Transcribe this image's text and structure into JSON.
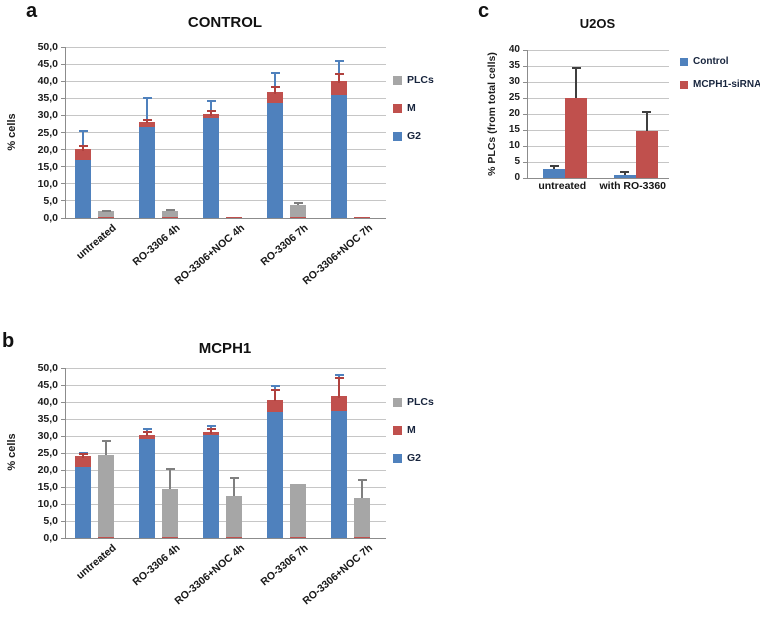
{
  "figure": {
    "background": "#ffffff"
  },
  "colors": {
    "g2_blue": "#4F81BD",
    "m_red": "#C0504D",
    "plc_gray": "#A6A6A6",
    "error_blue": "#4F81BD",
    "error_red": "#B0413E",
    "error_gray": "#7F7F7F",
    "error_black": "#3F3F3F",
    "grid": "#C6C6C6",
    "axis": "#8C8C8C"
  },
  "chart_data": [
    {
      "panel_letter": "a",
      "type": "bar",
      "subtype": "stacked-G2-M-with-adjacent-PLC-bar",
      "title": "CONTROL",
      "ylabel": "% cells",
      "ylim": [
        0,
        50
      ],
      "ytick_step": 5,
      "ytick_labels": [
        "0,0",
        "5,0",
        "10,0",
        "15,0",
        "20,0",
        "25,0",
        "30,0",
        "35,0",
        "40,0",
        "45,0",
        "50,0"
      ],
      "grid": true,
      "categories": [
        "untreated",
        "RO-3306 4h",
        "RO-3306+NOC 4h",
        "RO-3306 7h",
        "RO-3306+NOC 7h"
      ],
      "series": [
        {
          "name": "G2",
          "color": "#4F81BD",
          "values": [
            17.0,
            26.5,
            29.3,
            33.5,
            36.0
          ],
          "error_top": [
            25.5,
            35.0,
            34.1,
            42.5,
            46.0
          ]
        },
        {
          "name": "M",
          "color": "#C0504D",
          "values": [
            3.2,
            1.7,
            1.1,
            3.3,
            4.0
          ],
          "error_top": [
            21.0,
            28.8,
            31.2,
            38.3,
            42.2
          ]
        },
        {
          "name": "PLCs",
          "color": "#A6A6A6",
          "values": [
            1.7,
            1.7,
            0,
            3.5,
            0
          ],
          "error_top": [
            2.1,
            2.2,
            null,
            4.5,
            null
          ],
          "base_m_sliver": 0.4
        }
      ],
      "legend": {
        "position": "right",
        "entries": [
          {
            "label": "PLCs",
            "color": "#A6A6A6"
          },
          {
            "label": "M",
            "color": "#C0504D"
          },
          {
            "label": "G2",
            "color": "#4F81BD"
          }
        ]
      }
    },
    {
      "panel_letter": "b",
      "type": "bar",
      "subtype": "stacked-G2-M-with-adjacent-PLC-bar",
      "title": "MCPH1",
      "ylabel": "% cells",
      "ylim": [
        0,
        50
      ],
      "ytick_step": 5,
      "ytick_labels": [
        "0,0",
        "5,0",
        "10,0",
        "15,0",
        "20,0",
        "25,0",
        "30,0",
        "35,0",
        "40,0",
        "45,0",
        "50,0"
      ],
      "grid": true,
      "categories": [
        "untreated",
        "RO-3306 4h",
        "RO-3306+NOC 4h",
        "RO-3306 7h",
        "RO-3306+NOC 7h"
      ],
      "series": [
        {
          "name": "G2",
          "color": "#4F81BD",
          "values": [
            21.0,
            29.0,
            30.2,
            37.2,
            37.5
          ],
          "error_top": [
            25.0,
            32.2,
            33.0,
            44.6,
            48.0
          ]
        },
        {
          "name": "M",
          "color": "#C0504D",
          "values": [
            3.1,
            1.4,
            1.0,
            3.5,
            4.2
          ],
          "error_top": [
            24.6,
            31.3,
            32.1,
            43.6,
            47.2
          ]
        },
        {
          "name": "PLCs",
          "color": "#A6A6A6",
          "values": [
            24.0,
            14.0,
            12.0,
            15.5,
            11.5
          ],
          "error_top": [
            28.5,
            20.3,
            17.7,
            null,
            17.0
          ],
          "base_m_sliver": 0.4
        }
      ],
      "legend": {
        "position": "right",
        "entries": [
          {
            "label": "PLCs",
            "color": "#A6A6A6"
          },
          {
            "label": "M",
            "color": "#C0504D"
          },
          {
            "label": "G2",
            "color": "#4F81BD"
          }
        ]
      }
    },
    {
      "panel_letter": "c",
      "type": "bar",
      "subtype": "grouped",
      "title": "U2OS",
      "ylabel": "% PLCs (from total cells)",
      "ylim": [
        0,
        40
      ],
      "ytick_step": 5,
      "ytick_labels": [
        "0",
        "5",
        "10",
        "15",
        "20",
        "25",
        "30",
        "35",
        "40"
      ],
      "grid": true,
      "categories": [
        "untreated",
        "with RO-3360"
      ],
      "error_color": "#3F3F3F",
      "series": [
        {
          "name": "Control",
          "color": "#4F81BD",
          "values": [
            2.7,
            1.0
          ],
          "error_top": [
            3.8,
            2.0
          ]
        },
        {
          "name": "MCPH1-siRNA",
          "color": "#C0504D",
          "values": [
            25.0,
            14.7
          ],
          "error_top": [
            34.5,
            20.5
          ]
        }
      ],
      "legend": {
        "position": "right",
        "entries": [
          {
            "label": "Control",
            "color": "#4F81BD"
          },
          {
            "label": "MCPH1-siRNA",
            "color": "#C0504D"
          }
        ]
      }
    }
  ]
}
